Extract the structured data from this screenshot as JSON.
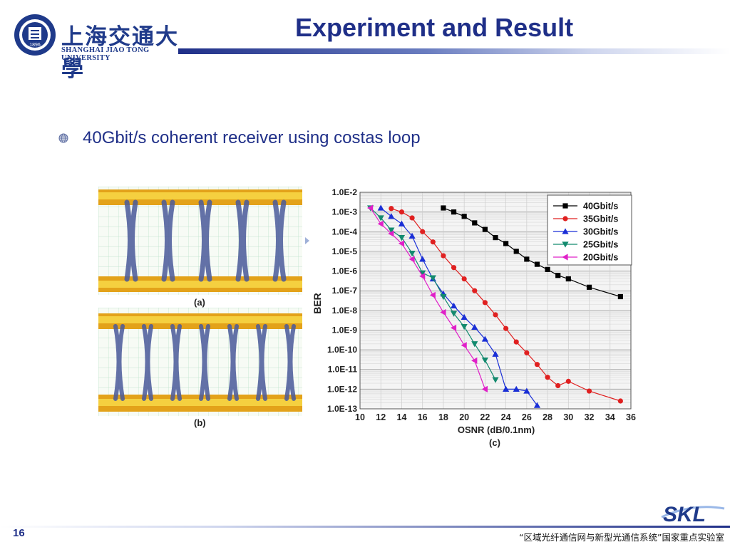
{
  "header": {
    "logo_cn": "上海交通大學",
    "logo_en": "SHANGHAI JIAO TONG UNIVERSITY",
    "logo_seal_text": "1896",
    "title": "Experiment and Result"
  },
  "bullet": {
    "text": "40Gbit/s coherent receiver using costas loop",
    "icon": "globe-bullet-icon"
  },
  "eye_diagrams": [
    {
      "caption": "(a)"
    },
    {
      "caption": "(b)"
    }
  ],
  "chart_data": {
    "type": "line",
    "caption": "(c)",
    "xlabel": "OSNR (dB/0.1nm)",
    "ylabel": "BER",
    "xlim": [
      10,
      36
    ],
    "ylim_exp": [
      -13,
      -2
    ],
    "yscale": "log",
    "x_ticks": [
      10,
      12,
      14,
      16,
      18,
      20,
      22,
      24,
      26,
      28,
      30,
      32,
      34,
      36
    ],
    "y_ticks": [
      "1.0E-2",
      "1.0E-3",
      "1.0E-4",
      "1.0E-5",
      "1.0E-6",
      "1.0E-7",
      "1.0E-8",
      "1.0E-9",
      "1.0E-10",
      "1.0E-11",
      "1.0E-12",
      "1.0E-13"
    ],
    "grid": true,
    "legend_position": "top-right",
    "series": [
      {
        "name": "40Gbit/s",
        "color": "#000000",
        "marker": "square",
        "x": [
          18,
          19,
          20,
          21,
          22,
          23,
          24,
          25,
          26,
          27,
          28,
          29,
          30,
          32,
          35
        ],
        "y": [
          0.0016,
          0.001,
          0.0006,
          0.00028,
          0.00013,
          5e-05,
          2.5e-05,
          1e-05,
          4e-06,
          2.2e-06,
          1.2e-06,
          6e-07,
          4e-07,
          1.5e-07,
          5e-08
        ]
      },
      {
        "name": "35Gbit/s",
        "color": "#e02020",
        "marker": "circle",
        "x": [
          13,
          14,
          15,
          16,
          17,
          18,
          19,
          20,
          21,
          22,
          23,
          24,
          25,
          26,
          27,
          28,
          29,
          30,
          32,
          35
        ],
        "y": [
          0.0015,
          0.001,
          0.0005,
          0.0001,
          3e-05,
          6e-06,
          1.5e-06,
          4e-07,
          1e-07,
          2.5e-08,
          6e-09,
          1.2e-09,
          2.5e-10,
          7e-11,
          1.8e-11,
          4e-12,
          1.5e-12,
          2.5e-12,
          8e-13,
          2.5e-13
        ]
      },
      {
        "name": "30Gbit/s",
        "color": "#1a2fd6",
        "marker": "triangle-up",
        "x": [
          12,
          13,
          14,
          15,
          16,
          17,
          18,
          19,
          20,
          21,
          22,
          23,
          24,
          25,
          26,
          27
        ],
        "y": [
          0.0016,
          0.0006,
          0.00025,
          6e-05,
          4e-06,
          4e-07,
          7e-08,
          1.7e-08,
          4.5e-09,
          1.4e-09,
          3.5e-10,
          6e-11,
          1e-12,
          1e-12,
          8e-13,
          1.5e-13
        ]
      },
      {
        "name": "25Gbit/s",
        "color": "#138a6e",
        "marker": "triangle-down",
        "x": [
          11,
          12,
          13,
          14,
          15,
          16,
          17,
          18,
          19,
          20,
          21,
          22,
          23
        ],
        "y": [
          0.0016,
          0.0005,
          0.00012,
          5e-05,
          8e-06,
          8e-07,
          4.5e-07,
          5e-08,
          7e-09,
          1.5e-09,
          2e-10,
          3e-11,
          3e-12
        ]
      },
      {
        "name": "20Gbit/s",
        "color": "#e020c8",
        "marker": "triangle-left",
        "x": [
          11,
          12,
          13,
          14,
          15,
          16,
          17,
          18,
          19,
          20,
          21,
          22
        ],
        "y": [
          0.0016,
          0.00025,
          8e-05,
          2.5e-05,
          4e-06,
          5.5e-07,
          6e-08,
          8e-09,
          1.3e-09,
          1.7e-10,
          2.8e-11,
          1e-12
        ]
      }
    ]
  },
  "footer": {
    "page": "16",
    "lab": "“区域光纤通信网与新型光通信系统”国家重点实验室",
    "logo": "SKL"
  }
}
